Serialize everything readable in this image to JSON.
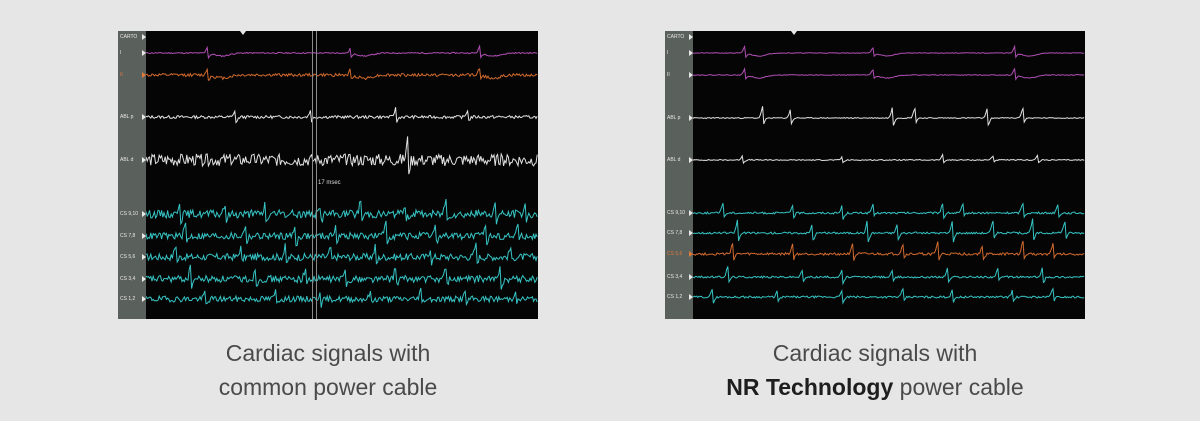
{
  "left_panel": {
    "channels": [
      {
        "label": "CARTO",
        "color": "#e8e8e8"
      },
      {
        "label": "I",
        "color": "#e8e8e8"
      },
      {
        "label": "II",
        "color": "#e07a3a"
      },
      {
        "label": "ABL p",
        "color": "#e8e8e8"
      },
      {
        "label": "ABL d",
        "color": "#e8e8e8"
      },
      {
        "label": "CS 9,10",
        "color": "#e8e8e8"
      },
      {
        "label": "CS 7,8",
        "color": "#e8e8e8"
      },
      {
        "label": "CS 5,6",
        "color": "#e8e8e8"
      },
      {
        "label": "CS 3,4",
        "color": "#e8e8e8"
      },
      {
        "label": "CS 1,2",
        "color": "#e8e8e8"
      }
    ],
    "measurement": "17 msec",
    "caption_line1": "Cardiac signals with",
    "caption_line2": "common power cable"
  },
  "right_panel": {
    "channels": [
      {
        "label": "CARTO",
        "color": "#e8e8e8"
      },
      {
        "label": "I",
        "color": "#e8e8e8"
      },
      {
        "label": "II",
        "color": "#e8e8e8"
      },
      {
        "label": "ABL p",
        "color": "#e8e8e8"
      },
      {
        "label": "ABL d",
        "color": "#e8e8e8"
      },
      {
        "label": "CS 9,10",
        "color": "#e8e8e8"
      },
      {
        "label": "CS 7,8",
        "color": "#e8e8e8"
      },
      {
        "label": "CS 5,6",
        "color": "#e07a3a"
      },
      {
        "label": "CS 3,4",
        "color": "#e8e8e8"
      },
      {
        "label": "CS 1,2",
        "color": "#e8e8e8"
      }
    ],
    "caption_line1": "Cardiac signals with",
    "caption_bold": "NR Technology",
    "caption_rest": " power cable"
  },
  "colors": {
    "purple": "#b04fb4",
    "orange": "#d26a2e",
    "white_trace": "#e2e2e2",
    "cyan": "#37c4c4",
    "background": "#e6e6e6"
  }
}
